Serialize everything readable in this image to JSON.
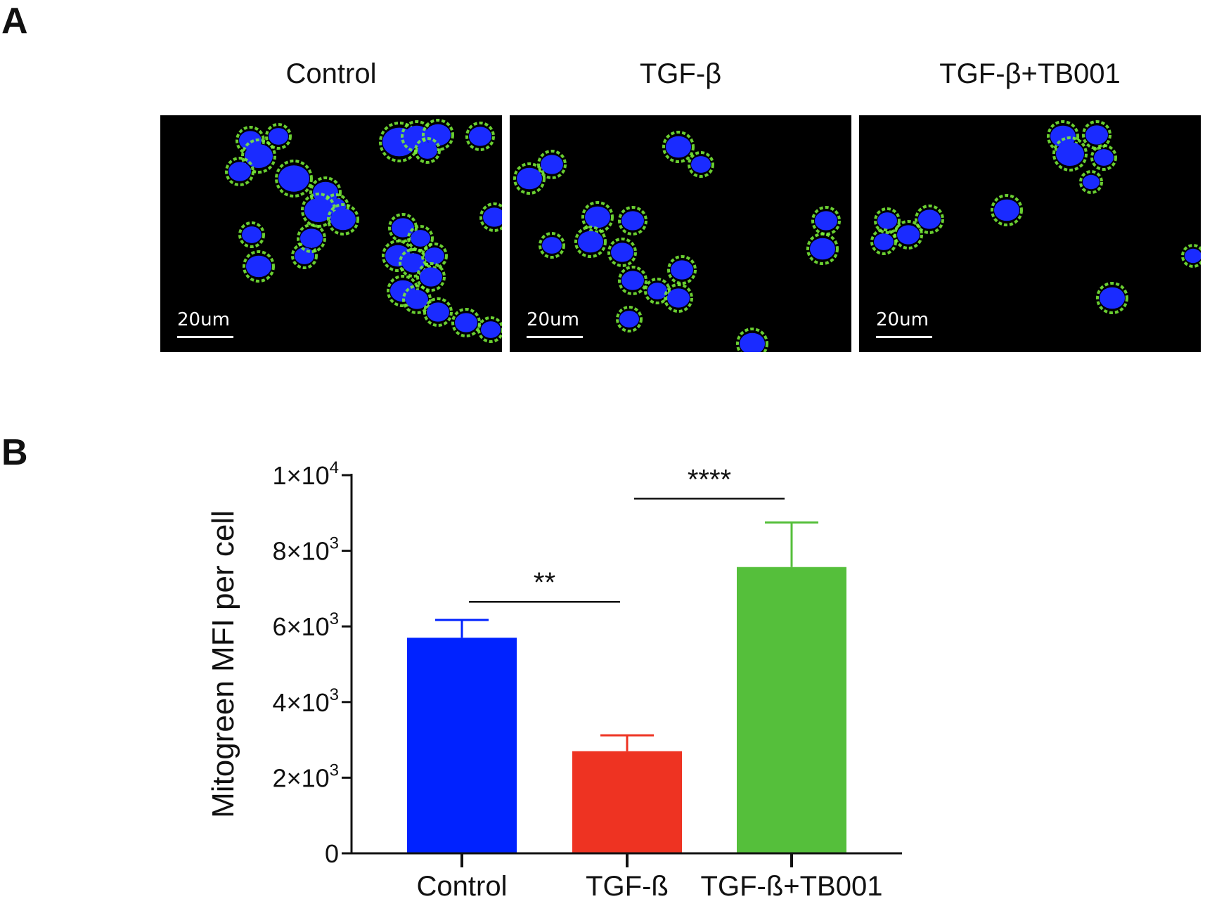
{
  "panel_a": {
    "letter": "A",
    "images": [
      {
        "title": "Control",
        "scale": "20um"
      },
      {
        "title": "TGF-β",
        "scale": "20um"
      },
      {
        "title": "TGF-β+TB001",
        "scale": "20um"
      }
    ],
    "colors": {
      "nucleus": "#1a2bff",
      "mito": "#7df23a",
      "background": "#000000"
    }
  },
  "panel_b": {
    "letter": "B"
  },
  "chart_data": {
    "type": "bar",
    "categories": [
      "Control",
      "TGF-ß",
      "TGF-ß+TB001"
    ],
    "values": [
      5700,
      2700,
      7570
    ],
    "errors": [
      470,
      420,
      1180
    ],
    "colors": [
      "#0022ff",
      "#ee3322",
      "#55bf3b"
    ],
    "ylabel": "Mitogreen MFI per cell",
    "xlabel": "",
    "ylim": [
      0,
      10000
    ],
    "yticks": [
      {
        "value": 0,
        "base": "0",
        "exp": ""
      },
      {
        "value": 2000,
        "base": "2×10",
        "exp": "3"
      },
      {
        "value": 4000,
        "base": "4×10",
        "exp": "3"
      },
      {
        "value": 6000,
        "base": "6×10",
        "exp": "3"
      },
      {
        "value": 8000,
        "base": "8×10",
        "exp": "3"
      },
      {
        "value": 10000,
        "base": "1×10",
        "exp": "4"
      }
    ],
    "significance": [
      {
        "from": 0,
        "to": 1,
        "label": "**",
        "level": 6650
      },
      {
        "from": 1,
        "to": 2,
        "label": "****",
        "level": 9380
      }
    ],
    "grid": false
  }
}
